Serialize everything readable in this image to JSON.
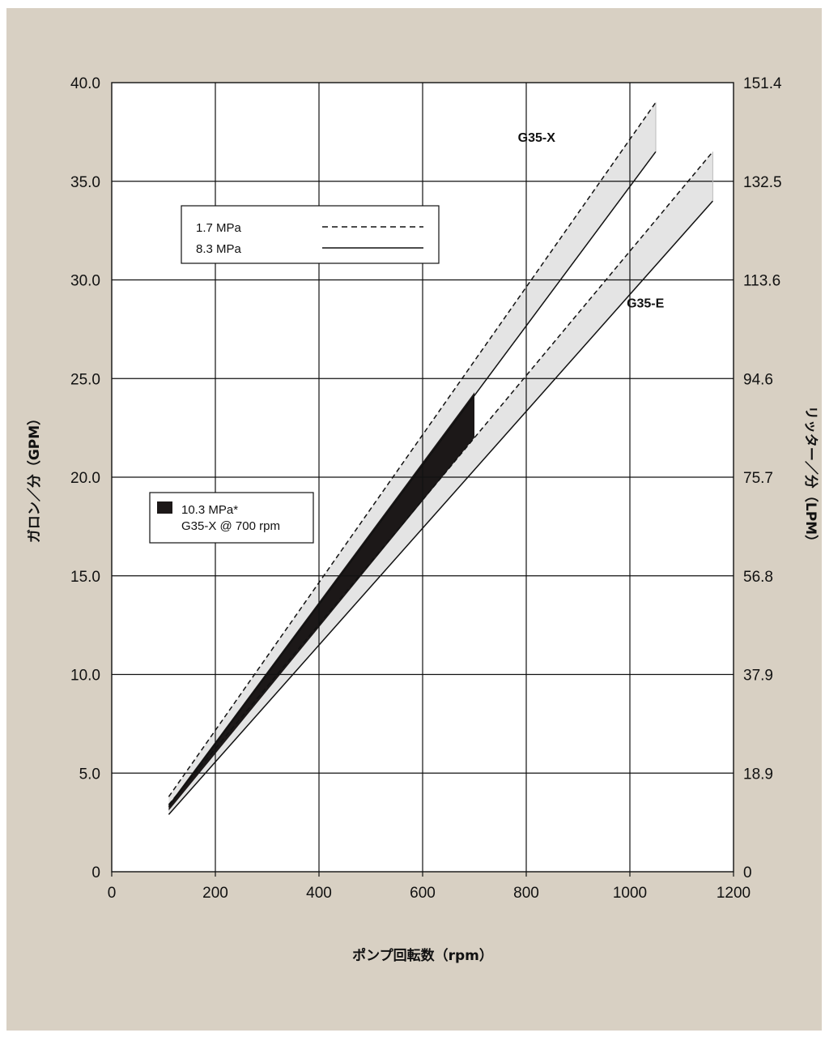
{
  "chart_data": {
    "type": "line",
    "xlabel": "ポンプ回転数（rpm）",
    "ylabel": "ガロン／分（GPM）",
    "ylabel_right": "リッター／分（LPM）",
    "xlim": [
      0,
      1200
    ],
    "ylim": [
      0,
      40
    ],
    "x_ticks": [
      0,
      200,
      400,
      600,
      800,
      1000,
      1200
    ],
    "x_tick_labels": [
      "0",
      "200",
      "400",
      "600",
      "800",
      "1000",
      "1200"
    ],
    "y_ticks": [
      0,
      5,
      10,
      15,
      20,
      25,
      30,
      35,
      40
    ],
    "y_tick_labels": [
      "0",
      "5.0",
      "10.0",
      "15.0",
      "20.0",
      "25.0",
      "30.0",
      "35.0",
      "40.0"
    ],
    "y_right_tick_labels": [
      "0",
      "18.9",
      "37.9",
      "56.8",
      "75.7",
      "94.6",
      "113.6",
      "132.5",
      "151.4"
    ],
    "grid": true,
    "series": [
      {
        "name": "G35-X 1.7 MPa",
        "style": "dashed",
        "x": [
          110,
          1050
        ],
        "y": [
          3.8,
          39.0
        ]
      },
      {
        "name": "G35-X 8.3 MPa",
        "style": "solid",
        "x": [
          110,
          1050
        ],
        "y": [
          3.3,
          36.5
        ]
      },
      {
        "name": "G35-E 1.7 MPa",
        "style": "dashed",
        "x": [
          110,
          1160
        ],
        "y": [
          3.4,
          36.5
        ]
      },
      {
        "name": "G35-E 8.3 MPa",
        "style": "solid",
        "x": [
          110,
          1160
        ],
        "y": [
          2.9,
          34.0
        ]
      }
    ],
    "band_10_3": {
      "x": [
        110,
        700
      ],
      "upper": [
        3.4,
        24.3
      ],
      "lower": [
        3.1,
        22.0
      ]
    },
    "series_labels": [
      {
        "text": "G35-X",
        "x": 820,
        "y": 37.0
      },
      {
        "text": "G35-E",
        "x": 1030,
        "y": 28.6
      }
    ],
    "legend_pressure": [
      {
        "label": "1.7 MPa",
        "style": "dashed"
      },
      {
        "label": "8.3 MPa",
        "style": "solid"
      }
    ],
    "legend_band": {
      "line1": "10.3 MPa*",
      "line2": "G35-X @ 700 rpm"
    },
    "colors": {
      "background": "#d8d0c3",
      "plot_bg": "#ffffff",
      "band_fill": "#e4e4e4",
      "highlight": "#1c1818",
      "line": "#111111"
    }
  }
}
